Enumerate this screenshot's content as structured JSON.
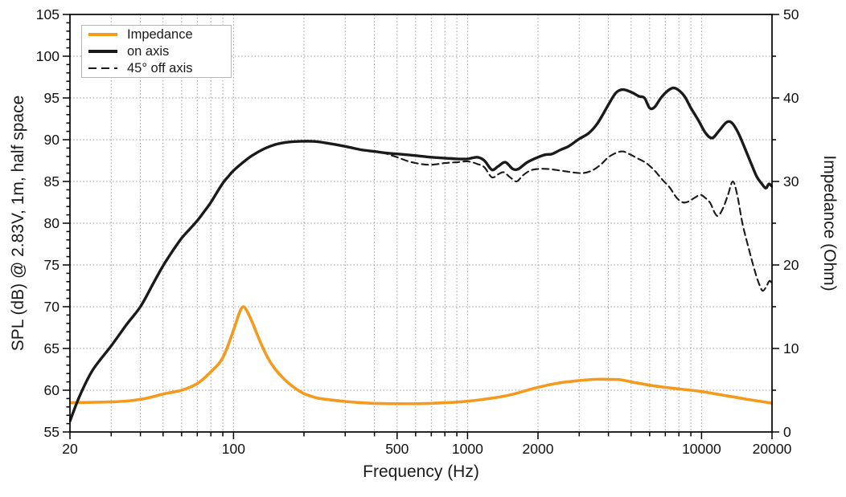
{
  "figure": {
    "legend": [
      {
        "label": "Impedance",
        "style": "solid",
        "color": "#F49A1E"
      },
      {
        "label": "on axis",
        "style": "solid",
        "color": "#1a1a1a"
      },
      {
        "label": "45° off axis",
        "style": "dashed",
        "color": "#1a1a1a"
      }
    ],
    "colors": {
      "impedance": "#F49A1E",
      "curves": "#1a1a1a",
      "grid": "#9b9b9b",
      "frame": "#000000"
    }
  },
  "chart_data": {
    "type": "line",
    "title": "",
    "xlabel": "Frequency (Hz)",
    "ylabel_left": "SPL (dB) @ 2.83V, 1m, half space",
    "ylabel_right": "Impedance (Ohm)",
    "x_scale": "log",
    "xlim": [
      20,
      20000
    ],
    "ylim_left": [
      55,
      105
    ],
    "ylim_right": [
      0,
      50
    ],
    "x_ticks_labeled": [
      20,
      100,
      500,
      1000,
      2000,
      10000,
      20000
    ],
    "y_ticks_left_labeled": [
      55,
      60,
      65,
      70,
      75,
      80,
      85,
      90,
      95,
      100,
      105
    ],
    "y_ticks_right_labeled": [
      0,
      10,
      20,
      30,
      40,
      50
    ],
    "grid": "dotted",
    "legend_position": "top-left",
    "series": [
      {
        "name": "Impedance",
        "axis": "right",
        "color": "#F49A1E",
        "dash": "solid",
        "width": 3.6,
        "points": [
          [
            20,
            3.5
          ],
          [
            25,
            3.55
          ],
          [
            30,
            3.6
          ],
          [
            35,
            3.7
          ],
          [
            40,
            3.9
          ],
          [
            45,
            4.2
          ],
          [
            50,
            4.55
          ],
          [
            60,
            5.0
          ],
          [
            70,
            5.8
          ],
          [
            80,
            7.2
          ],
          [
            90,
            8.9
          ],
          [
            100,
            12.2
          ],
          [
            106,
            14.3
          ],
          [
            110,
            15.0
          ],
          [
            114,
            14.5
          ],
          [
            120,
            13.2
          ],
          [
            130,
            10.8
          ],
          [
            140,
            8.9
          ],
          [
            150,
            7.6
          ],
          [
            165,
            6.3
          ],
          [
            180,
            5.4
          ],
          [
            200,
            4.6
          ],
          [
            225,
            4.1
          ],
          [
            250,
            3.9
          ],
          [
            300,
            3.65
          ],
          [
            350,
            3.5
          ],
          [
            400,
            3.42
          ],
          [
            500,
            3.38
          ],
          [
            600,
            3.38
          ],
          [
            700,
            3.42
          ],
          [
            800,
            3.5
          ],
          [
            900,
            3.58
          ],
          [
            1000,
            3.68
          ],
          [
            1200,
            3.95
          ],
          [
            1500,
            4.4
          ],
          [
            1750,
            4.9
          ],
          [
            2000,
            5.35
          ],
          [
            2500,
            5.9
          ],
          [
            3000,
            6.15
          ],
          [
            3500,
            6.3
          ],
          [
            4000,
            6.3
          ],
          [
            4500,
            6.25
          ],
          [
            5000,
            6.0
          ],
          [
            6000,
            5.6
          ],
          [
            7000,
            5.35
          ],
          [
            8000,
            5.15
          ],
          [
            9000,
            5.0
          ],
          [
            10000,
            4.85
          ],
          [
            11500,
            4.55
          ],
          [
            13000,
            4.3
          ],
          [
            15000,
            4.0
          ],
          [
            17000,
            3.75
          ],
          [
            18500,
            3.6
          ],
          [
            20000,
            3.45
          ]
        ]
      },
      {
        "name": "on axis",
        "axis": "left",
        "color": "#1a1a1a",
        "dash": "solid",
        "width": 3.4,
        "points": [
          [
            20,
            56.3
          ],
          [
            22,
            59.3
          ],
          [
            25,
            62.4
          ],
          [
            30,
            65.3
          ],
          [
            35,
            67.9
          ],
          [
            40,
            70.0
          ],
          [
            45,
            72.6
          ],
          [
            50,
            74.9
          ],
          [
            55,
            76.7
          ],
          [
            60,
            78.2
          ],
          [
            65,
            79.3
          ],
          [
            70,
            80.3
          ],
          [
            75,
            81.4
          ],
          [
            80,
            82.5
          ],
          [
            85,
            83.7
          ],
          [
            90,
            84.8
          ],
          [
            95,
            85.6
          ],
          [
            100,
            86.3
          ],
          [
            110,
            87.3
          ],
          [
            120,
            88.1
          ],
          [
            135,
            88.9
          ],
          [
            150,
            89.4
          ],
          [
            170,
            89.7
          ],
          [
            190,
            89.8
          ],
          [
            220,
            89.8
          ],
          [
            250,
            89.6
          ],
          [
            300,
            89.2
          ],
          [
            350,
            88.8
          ],
          [
            400,
            88.6
          ],
          [
            450,
            88.4
          ],
          [
            500,
            88.3
          ],
          [
            600,
            88.1
          ],
          [
            700,
            87.9
          ],
          [
            800,
            87.8
          ],
          [
            900,
            87.7
          ],
          [
            1000,
            87.7
          ],
          [
            1100,
            87.9
          ],
          [
            1180,
            87.5
          ],
          [
            1270,
            86.4
          ],
          [
            1350,
            86.8
          ],
          [
            1450,
            87.3
          ],
          [
            1560,
            86.5
          ],
          [
            1650,
            86.5
          ],
          [
            1800,
            87.3
          ],
          [
            2000,
            87.9
          ],
          [
            2150,
            88.2
          ],
          [
            2300,
            88.3
          ],
          [
            2500,
            88.8
          ],
          [
            2700,
            89.2
          ],
          [
            3000,
            90.1
          ],
          [
            3300,
            90.8
          ],
          [
            3600,
            92.0
          ],
          [
            4000,
            94.2
          ],
          [
            4300,
            95.6
          ],
          [
            4600,
            96.0
          ],
          [
            5000,
            95.7
          ],
          [
            5400,
            95.2
          ],
          [
            5700,
            95.0
          ],
          [
            6000,
            93.8
          ],
          [
            6300,
            93.9
          ],
          [
            6700,
            95.0
          ],
          [
            7200,
            95.9
          ],
          [
            7600,
            96.2
          ],
          [
            8000,
            95.9
          ],
          [
            8500,
            95.1
          ],
          [
            9000,
            93.8
          ],
          [
            9700,
            92.3
          ],
          [
            10400,
            90.8
          ],
          [
            11100,
            90.2
          ],
          [
            11900,
            91.1
          ],
          [
            12800,
            92.1
          ],
          [
            13500,
            92.0
          ],
          [
            14300,
            90.9
          ],
          [
            15200,
            89.2
          ],
          [
            16200,
            87.3
          ],
          [
            17200,
            85.6
          ],
          [
            18000,
            84.8
          ],
          [
            18800,
            84.2
          ],
          [
            19400,
            84.7
          ],
          [
            20000,
            84.4
          ]
        ]
      },
      {
        "name": "45° off axis",
        "axis": "left",
        "color": "#1a1a1a",
        "dash": "dashed",
        "width": 2.1,
        "points": [
          [
            430,
            88.5
          ],
          [
            500,
            87.9
          ],
          [
            560,
            87.4
          ],
          [
            630,
            87.1
          ],
          [
            700,
            87.0
          ],
          [
            800,
            87.2
          ],
          [
            900,
            87.3
          ],
          [
            1000,
            87.4
          ],
          [
            1100,
            87.1
          ],
          [
            1180,
            86.7
          ],
          [
            1270,
            85.5
          ],
          [
            1360,
            85.9
          ],
          [
            1430,
            86.1
          ],
          [
            1520,
            85.5
          ],
          [
            1620,
            85.0
          ],
          [
            1720,
            85.7
          ],
          [
            1850,
            86.3
          ],
          [
            2000,
            86.5
          ],
          [
            2200,
            86.5
          ],
          [
            2500,
            86.3
          ],
          [
            2800,
            86.1
          ],
          [
            3100,
            86.0
          ],
          [
            3400,
            86.3
          ],
          [
            3700,
            87.0
          ],
          [
            4000,
            87.9
          ],
          [
            4300,
            88.4
          ],
          [
            4600,
            88.6
          ],
          [
            4900,
            88.3
          ],
          [
            5300,
            87.8
          ],
          [
            5800,
            87.2
          ],
          [
            6300,
            86.3
          ],
          [
            6800,
            85.2
          ],
          [
            7300,
            84.3
          ],
          [
            7800,
            83.1
          ],
          [
            8300,
            82.5
          ],
          [
            8800,
            82.6
          ],
          [
            9400,
            83.1
          ],
          [
            9900,
            83.4
          ],
          [
            10400,
            83.0
          ],
          [
            10900,
            82.4
          ],
          [
            11400,
            81.2
          ],
          [
            11800,
            80.9
          ],
          [
            12400,
            81.9
          ],
          [
            13000,
            83.5
          ],
          [
            13600,
            85.0
          ],
          [
            14200,
            83.4
          ],
          [
            15000,
            79.8
          ],
          [
            16000,
            76.7
          ],
          [
            17000,
            74.0
          ],
          [
            17800,
            72.4
          ],
          [
            18300,
            71.9
          ],
          [
            18900,
            72.4
          ],
          [
            19500,
            73.1
          ],
          [
            20000,
            72.7
          ]
        ]
      }
    ]
  }
}
